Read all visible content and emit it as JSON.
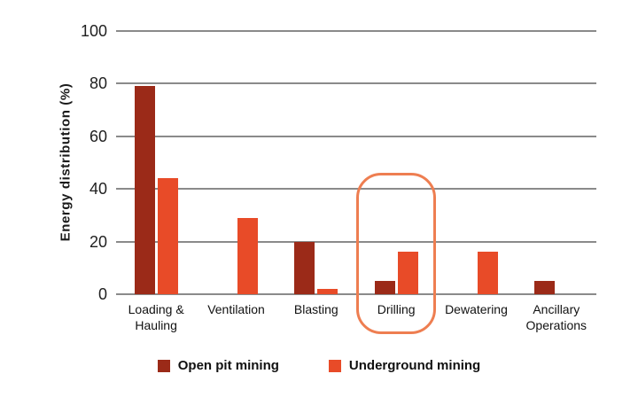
{
  "chart_data": {
    "type": "bar",
    "ylabel": "Energy distribution (%)",
    "ylim": [
      0,
      100
    ],
    "yticks": [
      0,
      20,
      40,
      60,
      80,
      100
    ],
    "grid": true,
    "legend_position": "bottom",
    "categories": [
      "Loading & Hauling",
      "Ventilation",
      "Blasting",
      "Drilling",
      "Dewatering",
      "Ancillary Operations"
    ],
    "series": [
      {
        "name": "Open pit mining",
        "color": "#9b2a18",
        "values": [
          79,
          0,
          20,
          5,
          0,
          5
        ]
      },
      {
        "name": "Underground mining",
        "color": "#e84b28",
        "values": [
          44,
          29,
          2,
          16,
          16,
          0
        ]
      }
    ],
    "highlight": {
      "category": "Drilling",
      "shape": "rounded-rectangle",
      "color": "#ee7e51"
    },
    "colors": {
      "background": "#ffffff",
      "gridline": "#8a8a8a",
      "text": "#1a1a1a"
    }
  }
}
